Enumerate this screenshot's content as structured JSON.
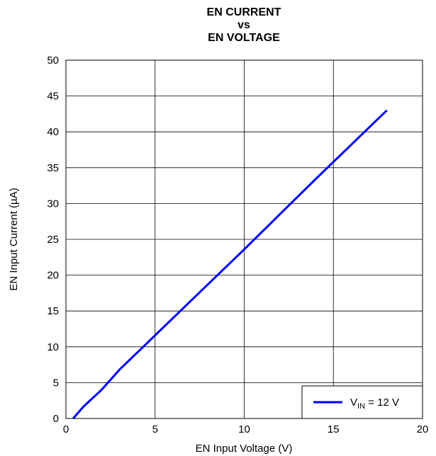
{
  "chart_data": {
    "type": "line",
    "title_lines": [
      "EN CURRENT",
      "vs",
      "EN VOLTAGE"
    ],
    "xlabel": "EN Input Voltage (V)",
    "ylabel": "EN Input Current (µA)",
    "xlim": [
      0,
      20
    ],
    "ylim": [
      0,
      50
    ],
    "x_ticks": [
      0,
      5,
      10,
      15,
      20
    ],
    "y_ticks": [
      0,
      5,
      10,
      15,
      20,
      25,
      30,
      35,
      40,
      45,
      50
    ],
    "grid": true,
    "legend_position": "bottom-right",
    "series": [
      {
        "legend_parts": {
          "main": "V",
          "sub": "IN",
          "rest": " = 12 V"
        },
        "color": "#0000ff",
        "x": [
          0.4,
          1.0,
          2.0,
          3.0,
          4.0,
          5.0,
          6.0,
          8.0,
          10.0,
          12.0,
          14.0,
          16.0,
          18.0
        ],
        "y": [
          0.0,
          1.7,
          4.0,
          6.8,
          9.2,
          11.6,
          14.0,
          18.8,
          23.6,
          28.5,
          33.4,
          38.2,
          43.0
        ]
      }
    ]
  }
}
